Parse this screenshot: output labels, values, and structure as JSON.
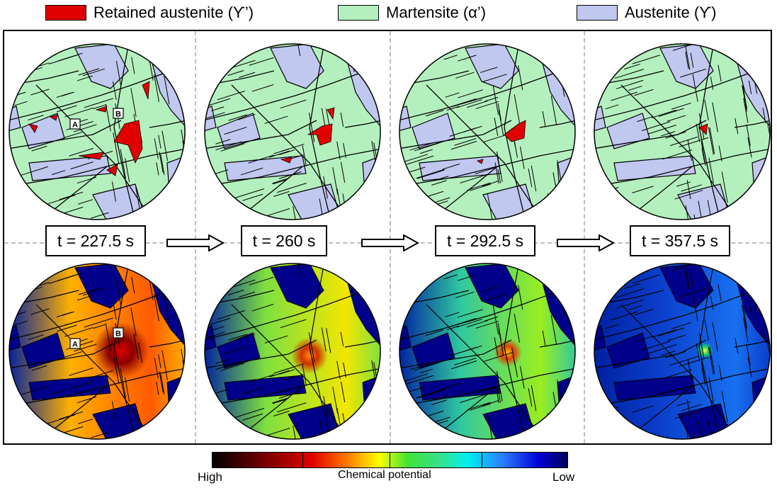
{
  "legend": [
    {
      "label": "Retained austenite (ϒ’)",
      "color": "#e00000"
    },
    {
      "label": "Martensite (α’)",
      "color": "#b4f0be"
    },
    {
      "label": "Austenite (ϒ)",
      "color": "#c0c8f0"
    }
  ],
  "times": [
    "t = 227.5 s",
    "t = 260 s",
    "t = 292.5 s",
    "t = 357.5 s"
  ],
  "grain_markers": [
    "A",
    "B"
  ],
  "colorbar": {
    "title": "Chemical potential",
    "high": "High",
    "low": "Low"
  },
  "colors": {
    "martensite": "#b4f0be",
    "austenite": "#c0c8f0",
    "retained": "#e00000"
  }
}
